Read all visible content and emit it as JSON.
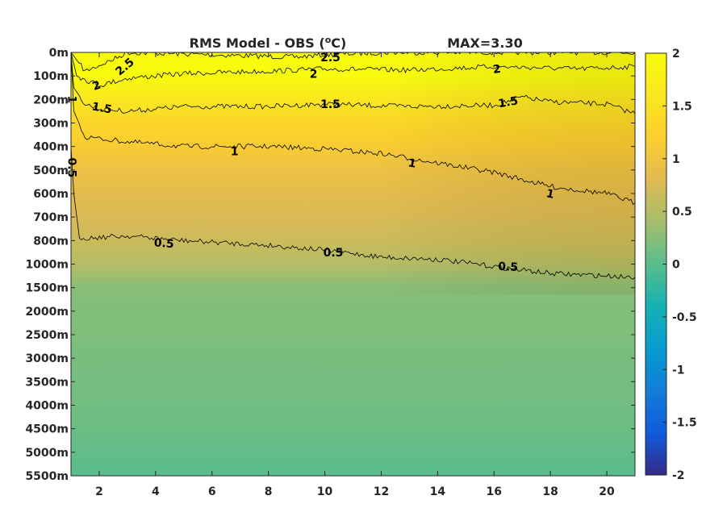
{
  "chart_data": {
    "type": "heatmap",
    "title": "RMS Model - OBS (°C)",
    "title_parts": {
      "prefix": "RMS Model - OBS (",
      "superscript": "o",
      "suffix": "C)"
    },
    "max_label": "MAX=3.30",
    "xlabel": "",
    "ylabel": "",
    "xlim": [
      1,
      21
    ],
    "x_ticks": [
      2,
      4,
      6,
      8,
      10,
      12,
      14,
      16,
      18,
      20
    ],
    "y_categories": [
      "0m",
      "100m",
      "200m",
      "300m",
      "400m",
      "500m",
      "600m",
      "700m",
      "800m",
      "1000m",
      "1500m",
      "2000m",
      "2500m",
      "3000m",
      "3500m",
      "4000m",
      "4500m",
      "5000m",
      "5500m"
    ],
    "colorbar": {
      "range": [
        -2,
        2
      ],
      "ticks": [
        "2",
        "1.5",
        "1",
        "0.5",
        "0",
        "-0.5",
        "-1",
        "-1.5",
        "-2"
      ],
      "colormap": "parula"
    },
    "depth_profile": [
      2.2,
      2.0,
      1.6,
      1.35,
      1.15,
      0.95,
      0.85,
      0.75,
      0.65,
      0.5,
      0.25,
      0.2,
      0.2,
      0.17,
      0.15,
      0.13,
      0.1,
      0.05,
      0.0
    ],
    "contours": [
      {
        "level": 2.5,
        "labels": [
          "2.5",
          "2.5"
        ],
        "depth": [
          [
            1,
            0.0
          ],
          [
            1.5,
            0.8
          ],
          [
            2.5,
            0.3
          ],
          [
            3,
            0.0
          ],
          [
            6,
            0.1
          ],
          [
            9,
            0.2
          ],
          [
            10,
            0.1
          ],
          [
            12,
            0.0
          ],
          [
            21,
            0.0
          ]
        ]
      },
      {
        "level": 2,
        "labels": [
          "2",
          "2",
          "2"
        ],
        "depth": [
          [
            1,
            0.0
          ],
          [
            1.2,
            1.0
          ],
          [
            2,
            1.4
          ],
          [
            3,
            1.1
          ],
          [
            5,
            0.9
          ],
          [
            8,
            0.8
          ],
          [
            10,
            0.7
          ],
          [
            13,
            0.75
          ],
          [
            16,
            0.6
          ],
          [
            19,
            0.7
          ],
          [
            21,
            0.6
          ]
        ]
      },
      {
        "level": 1.5,
        "labels": [
          "1.5",
          "1.5",
          "1.5",
          "1"
        ],
        "depth": [
          [
            1,
            0.0
          ],
          [
            1.1,
            1.5
          ],
          [
            1.5,
            2.2
          ],
          [
            2,
            2.4
          ],
          [
            3,
            2.5
          ],
          [
            5,
            2.3
          ],
          [
            8,
            2.3
          ],
          [
            10,
            2.2
          ],
          [
            13,
            2.3
          ],
          [
            16,
            2.25
          ],
          [
            17,
            1.9
          ],
          [
            18,
            2.1
          ],
          [
            20,
            2.2
          ],
          [
            21,
            2.6
          ]
        ]
      },
      {
        "level": 1,
        "labels": [
          "1",
          "1",
          "1"
        ],
        "depth": [
          [
            1,
            0.0
          ],
          [
            1.1,
            2.5
          ],
          [
            1.5,
            3.6
          ],
          [
            3,
            3.8
          ],
          [
            5,
            4.0
          ],
          [
            8,
            4.0
          ],
          [
            10,
            4.1
          ],
          [
            12,
            4.3
          ],
          [
            14,
            4.7
          ],
          [
            16,
            5.1
          ],
          [
            18,
            5.7
          ],
          [
            20,
            6.0
          ],
          [
            21,
            6.4
          ]
        ]
      },
      {
        "level": 0.5,
        "labels": [
          "0.5",
          "0.5",
          "0.5",
          "0.5"
        ],
        "depth": [
          [
            1,
            4.0
          ],
          [
            1.1,
            6.0
          ],
          [
            1.3,
            7.9
          ],
          [
            3,
            7.8
          ],
          [
            5,
            8.0
          ],
          [
            8,
            8.2
          ],
          [
            10,
            8.4
          ],
          [
            12,
            8.7
          ],
          [
            14,
            8.8
          ],
          [
            16,
            9.1
          ],
          [
            18,
            9.4
          ],
          [
            20,
            9.5
          ],
          [
            21,
            9.55
          ]
        ]
      }
    ],
    "colors": {
      "axis": "#262626",
      "contour": "#000000"
    }
  }
}
